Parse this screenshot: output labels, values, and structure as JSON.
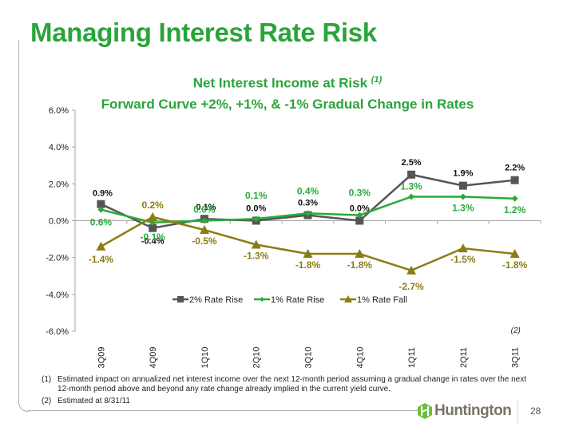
{
  "slide": {
    "title": "Managing Interest Rate Risk",
    "page_number": "28",
    "logo_text": "Huntington"
  },
  "footnotes": [
    {
      "num": "(1)",
      "text": "Estimated impact on annualized net interest income over the next 12-month period assuming a gradual change in rates over the next 12-month period above and beyond any rate change already implied in the current yield curve."
    },
    {
      "num": "(2)",
      "text": "Estimated at 8/31/11"
    }
  ],
  "chart_data": {
    "type": "line",
    "title": "Net Interest Income at Risk",
    "title_note": "(1)",
    "subtitle": "Forward Curve +2%, +1%, & -1% Gradual Change in Rates",
    "xlabel": "",
    "ylabel": "",
    "categories": [
      "3Q09",
      "4Q09",
      "1Q10",
      "2Q10",
      "3Q10",
      "4Q10",
      "1Q11",
      "2Q11",
      "3Q11"
    ],
    "category_notes": {
      "3Q11": "(2)"
    },
    "ylim": [
      -6.0,
      6.0
    ],
    "yticks": [
      -6.0,
      -4.0,
      -2.0,
      0.0,
      2.0,
      4.0,
      6.0
    ],
    "ytick_labels": [
      "-6.0%",
      "-4.0%",
      "-2.0%",
      "0.0%",
      "2.0%",
      "4.0%",
      "6.0%"
    ],
    "grid": false,
    "legend": {
      "position": "lower-center",
      "entries": [
        "2% Rate Rise",
        "1% Rate Rise",
        "1% Rate Fall"
      ]
    },
    "series": [
      {
        "name": "2% Rate Rise",
        "color": "#555555",
        "marker": "square",
        "values": [
          0.9,
          -0.4,
          0.1,
          0.0,
          0.3,
          0.0,
          2.5,
          1.9,
          2.2
        ],
        "labels": [
          "0.9%",
          "-0.4%",
          "0.1%",
          "0.0%",
          "0.3%",
          "0.0%",
          "2.5%",
          "1.9%",
          "2.2%"
        ],
        "label_color": "#111111"
      },
      {
        "name": "1% Rate Rise",
        "color": "#2aaa3a",
        "marker": "diamond",
        "values": [
          0.6,
          -0.1,
          0.0,
          0.1,
          0.4,
          0.3,
          1.3,
          1.3,
          1.2
        ],
        "labels": [
          "0.6%",
          "-0.1%",
          "0.0%",
          "0.1%",
          "0.4%",
          "0.3%",
          "1.3%",
          "1.3%",
          "1.2%"
        ],
        "label_color": "#2aaa3a"
      },
      {
        "name": "1% Rate Fall",
        "color": "#8c7d12",
        "marker": "triangle",
        "values": [
          -1.4,
          0.2,
          -0.5,
          -1.3,
          -1.8,
          -1.8,
          -2.7,
          -1.5,
          -1.8
        ],
        "labels": [
          "-1.4%",
          "0.2%",
          "-0.5%",
          "-1.3%",
          "-1.8%",
          "-1.8%",
          "-2.7%",
          "-1.5%",
          "-1.8%"
        ],
        "label_color": "#8c7d12"
      }
    ]
  }
}
